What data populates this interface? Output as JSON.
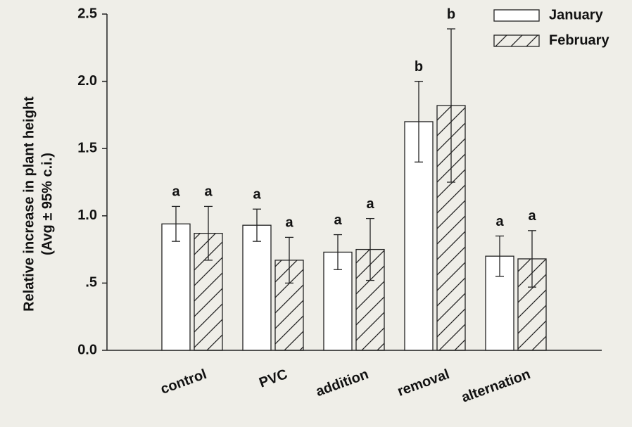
{
  "chart_data": {
    "type": "bar",
    "ylabel": [
      "Relative increase in plant height",
      "(Avg ± 95% c.i.)"
    ],
    "categories": [
      "control",
      "PVC",
      "addition",
      "removal",
      "alternation"
    ],
    "series": [
      {
        "name": "January",
        "color": "#ffffff",
        "pattern": "none",
        "values": [
          0.94,
          0.93,
          0.73,
          1.7,
          0.7
        ],
        "errors": [
          0.13,
          0.12,
          0.13,
          0.3,
          0.15
        ],
        "letters": [
          "a",
          "a",
          "a",
          "b",
          "a"
        ]
      },
      {
        "name": "February",
        "color": "#ffffff",
        "pattern": "hatch",
        "values": [
          0.87,
          0.67,
          0.75,
          1.82,
          0.68
        ],
        "errors": [
          0.2,
          0.17,
          0.23,
          0.57,
          0.21
        ],
        "letters": [
          "a",
          "a",
          "a",
          "b",
          "a"
        ]
      }
    ],
    "ylim": [
      0,
      2.5
    ],
    "yticks": [
      {
        "value": 0,
        "label": "0.0"
      },
      {
        "value": 0.5,
        "label": ".5"
      },
      {
        "value": 1,
        "label": "1.0"
      },
      1.5,
      {
        "value": 2,
        "label": "2.0"
      },
      2.5
    ],
    "legend": "upper right",
    "grid": false
  }
}
